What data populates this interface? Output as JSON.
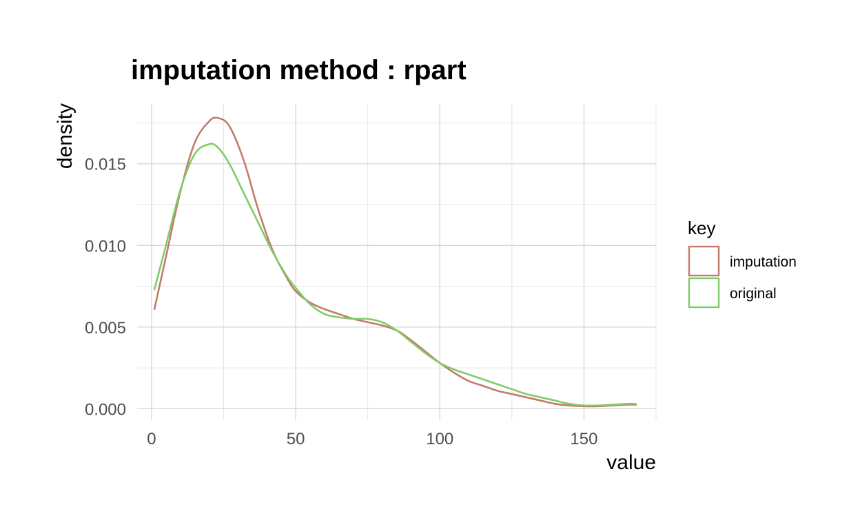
{
  "chart_data": {
    "type": "line",
    "title": "imputation method : rpart",
    "xlabel": "value",
    "ylabel": "density",
    "xlim": [
      -5,
      175
    ],
    "ylim": [
      -0.0007,
      0.0187
    ],
    "x_ticks": [
      0,
      50,
      100,
      150
    ],
    "x_tick_labels": [
      "0",
      "50",
      "100",
      "150"
    ],
    "y_ticks": [
      0.0,
      0.005,
      0.01,
      0.015
    ],
    "y_tick_labels": [
      "0.000",
      "0.005",
      "0.010",
      "0.015"
    ],
    "grid": true,
    "legend": {
      "title": "key",
      "position": "right"
    },
    "series": [
      {
        "name": "imputation",
        "color": "#c47a6a",
        "x": [
          1,
          5,
          10,
          15,
          20,
          23,
          27,
          32,
          37,
          42,
          47,
          50,
          55,
          60,
          65,
          70,
          75,
          80,
          85,
          90,
          95,
          100,
          105,
          110,
          115,
          120,
          125,
          130,
          135,
          140,
          145,
          150,
          155,
          160,
          165,
          168
        ],
        "y": [
          0.0061,
          0.0093,
          0.0133,
          0.0163,
          0.0176,
          0.0178,
          0.0173,
          0.0152,
          0.0122,
          0.0097,
          0.008,
          0.0072,
          0.0065,
          0.0061,
          0.0058,
          0.0055,
          0.0053,
          0.0051,
          0.0048,
          0.0042,
          0.0035,
          0.0028,
          0.0022,
          0.0017,
          0.0014,
          0.0011,
          0.0009,
          0.0007,
          0.0005,
          0.0003,
          0.0002,
          0.00015,
          0.00015,
          0.0002,
          0.00025,
          0.00025
        ]
      },
      {
        "name": "original",
        "color": "#80cc66",
        "x": [
          1,
          5,
          10,
          15,
          20,
          23,
          27,
          32,
          37,
          42,
          47,
          50,
          55,
          60,
          65,
          70,
          75,
          80,
          85,
          90,
          95,
          100,
          105,
          110,
          115,
          120,
          125,
          130,
          135,
          140,
          145,
          150,
          155,
          160,
          165,
          168
        ],
        "y": [
          0.0073,
          0.01,
          0.0134,
          0.0156,
          0.0162,
          0.016,
          0.015,
          0.0132,
          0.0114,
          0.0096,
          0.0081,
          0.0074,
          0.0064,
          0.0058,
          0.0056,
          0.0055,
          0.0055,
          0.0053,
          0.0048,
          0.0041,
          0.0034,
          0.0028,
          0.0024,
          0.0021,
          0.0018,
          0.0015,
          0.0012,
          0.0009,
          0.0007,
          0.0005,
          0.0003,
          0.0002,
          0.0002,
          0.00025,
          0.0003,
          0.0003
        ]
      }
    ]
  }
}
